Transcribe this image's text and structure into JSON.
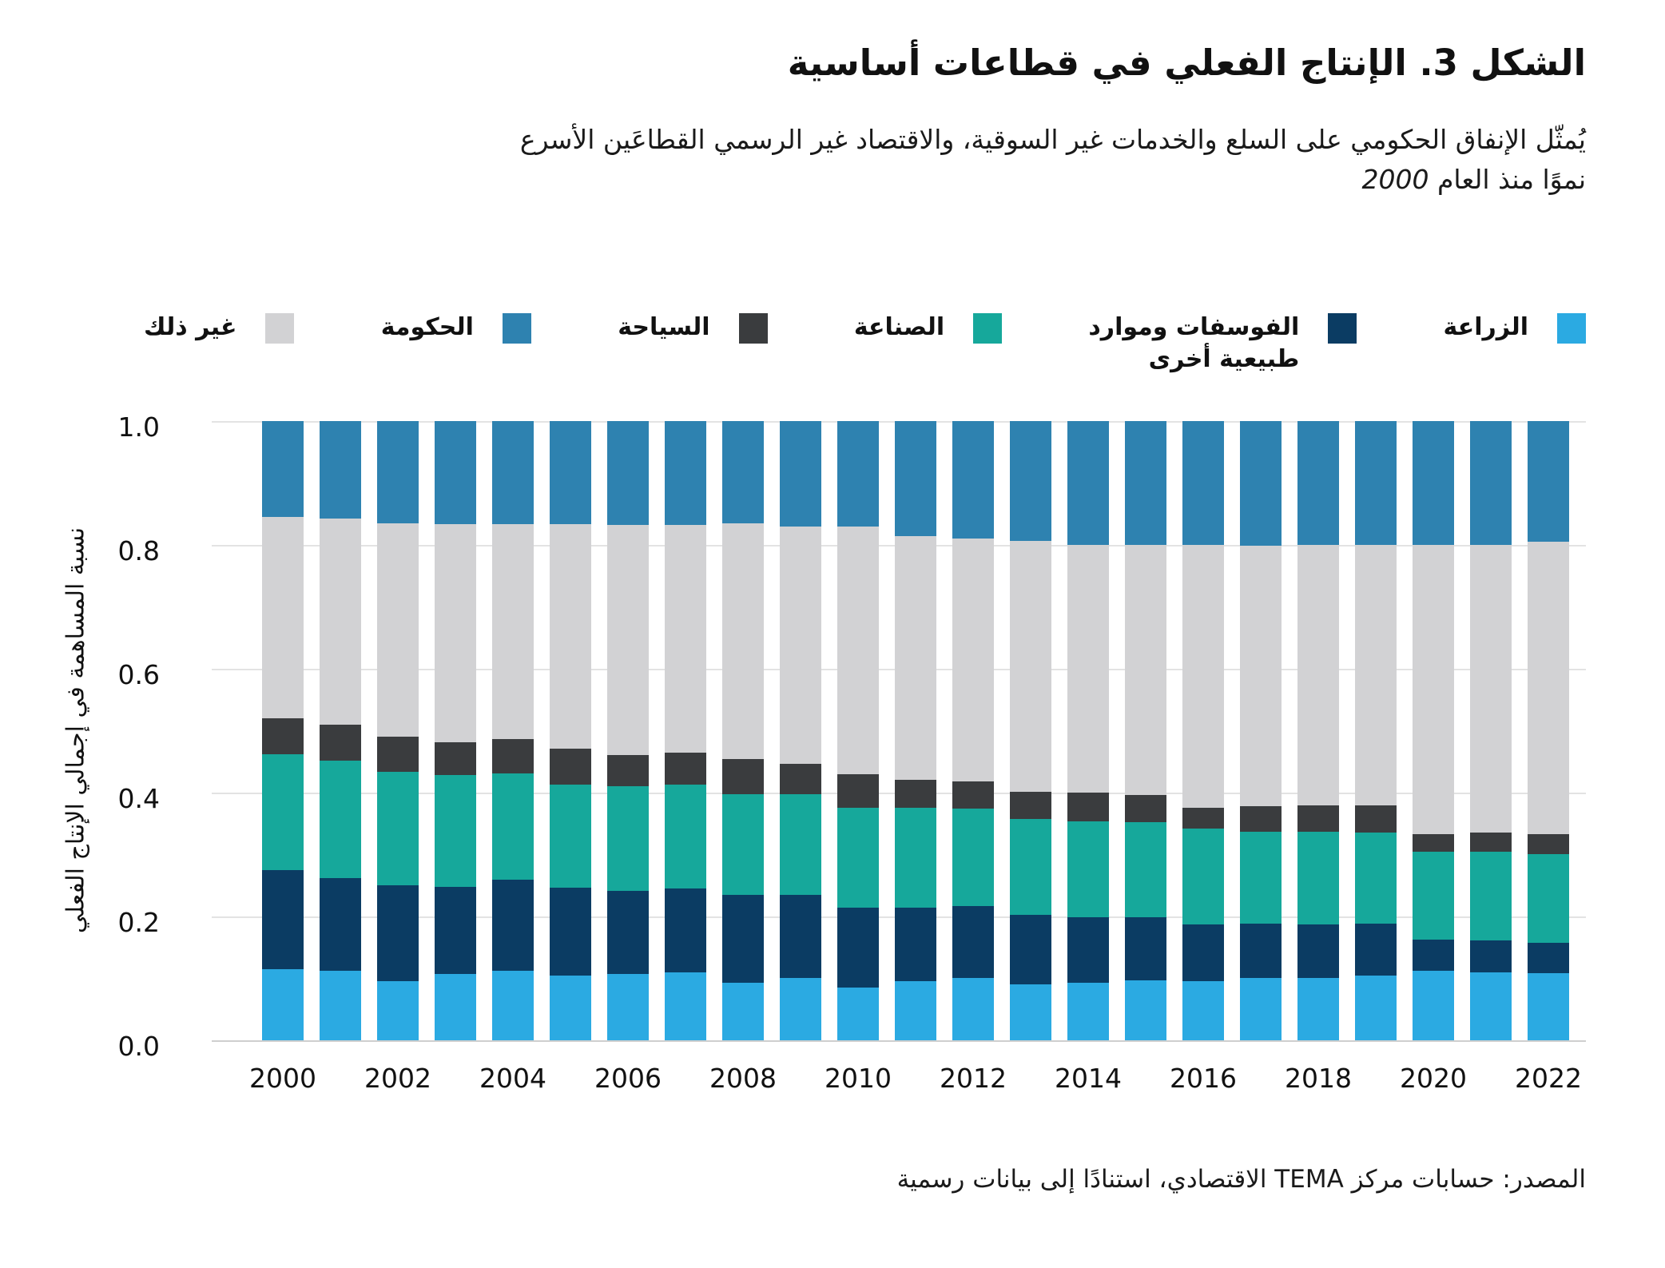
{
  "title": "الشكل 3. الإنتاج الفعلي في قطاعات أساسية",
  "subtitle": {
    "line1": "يُمثّل الإنفاق الحكومي على السلع والخدمات غير السوقية، والاقتصاد غير الرسمي القطاعَين الأسرع",
    "line2_text": "نموًا منذ العام",
    "line2_year": "2000"
  },
  "source": "المصدر: حسابات مركز TEMA الاقتصادي، استنادًا إلى بيانات رسمية",
  "colors": {
    "agriculture": "#2BAAE2",
    "phosphates": "#0B3C63",
    "industry": "#16A89B",
    "tourism": "#3A3C3E",
    "other": "#D2D2D4",
    "government": "#2E82B0",
    "gridline": "#E3E3E3",
    "text": "#111111"
  },
  "legend": [
    {
      "key": "agriculture",
      "lines": [
        "الزراعة"
      ]
    },
    {
      "key": "phosphates",
      "lines": [
        "الفوسفات وموارد",
        "طبيعية أخرى"
      ]
    },
    {
      "key": "industry",
      "lines": [
        "الصناعة"
      ]
    },
    {
      "key": "tourism",
      "lines": [
        "السياحة"
      ]
    },
    {
      "key": "government",
      "lines": [
        "الحكومة"
      ]
    },
    {
      "key": "other",
      "lines": [
        "غير ذلك"
      ]
    }
  ],
  "chart_data": {
    "type": "bar",
    "stacked": true,
    "title": "الشكل 3. الإنتاج الفعلي في قطاعات أساسية",
    "ylabel": "نسبة المساهمة في إجمالي الإنتاج الفعلي",
    "xlabel": "",
    "ylim": [
      0,
      1
    ],
    "grid": true,
    "legend_position": "top",
    "y_ticks": [
      "1.0",
      "0.8",
      "0.6",
      "0.4",
      "0.2",
      "0.0"
    ],
    "y_tick_values": [
      1.0,
      0.8,
      0.6,
      0.4,
      0.2,
      0.0
    ],
    "categories": [
      2000,
      2001,
      2002,
      2003,
      2004,
      2005,
      2006,
      2007,
      2008,
      2009,
      2010,
      2011,
      2012,
      2013,
      2014,
      2015,
      2016,
      2017,
      2018,
      2019,
      2020,
      2021,
      2022
    ],
    "x_tick_years": [
      2000,
      2002,
      2004,
      2006,
      2008,
      2010,
      2012,
      2014,
      2016,
      2018,
      2020,
      2022
    ],
    "series": [
      {
        "key": "agriculture",
        "name": "الزراعة",
        "values": [
          0.115,
          0.112,
          0.095,
          0.107,
          0.112,
          0.105,
          0.107,
          0.11,
          0.093,
          0.1,
          0.085,
          0.095,
          0.1,
          0.09,
          0.093,
          0.097,
          0.095,
          0.1,
          0.1,
          0.105,
          0.112,
          0.11,
          0.108
        ]
      },
      {
        "key": "phosphates",
        "name": "الفوسفات وموارد طبيعية أخرى",
        "values": [
          0.16,
          0.15,
          0.155,
          0.141,
          0.147,
          0.142,
          0.134,
          0.135,
          0.142,
          0.135,
          0.129,
          0.119,
          0.117,
          0.112,
          0.106,
          0.102,
          0.092,
          0.089,
          0.087,
          0.083,
          0.051,
          0.051,
          0.05
        ]
      },
      {
        "key": "industry",
        "name": "الصناعة",
        "values": [
          0.187,
          0.19,
          0.183,
          0.181,
          0.172,
          0.166,
          0.169,
          0.168,
          0.163,
          0.163,
          0.162,
          0.162,
          0.157,
          0.155,
          0.155,
          0.153,
          0.155,
          0.148,
          0.15,
          0.147,
          0.141,
          0.143,
          0.143
        ]
      },
      {
        "key": "tourism",
        "name": "السياحة",
        "values": [
          0.058,
          0.058,
          0.057,
          0.052,
          0.055,
          0.058,
          0.051,
          0.052,
          0.056,
          0.048,
          0.054,
          0.044,
          0.044,
          0.044,
          0.046,
          0.044,
          0.034,
          0.041,
          0.042,
          0.044,
          0.029,
          0.031,
          0.032
        ]
      },
      {
        "key": "other",
        "name": "غير ذلك",
        "values": [
          0.325,
          0.333,
          0.345,
          0.352,
          0.347,
          0.362,
          0.371,
          0.367,
          0.381,
          0.384,
          0.4,
          0.394,
          0.392,
          0.405,
          0.4,
          0.404,
          0.424,
          0.421,
          0.421,
          0.421,
          0.467,
          0.465,
          0.472
        ]
      },
      {
        "key": "government",
        "name": "الحكومة",
        "values": [
          0.155,
          0.157,
          0.165,
          0.167,
          0.167,
          0.167,
          0.168,
          0.168,
          0.165,
          0.17,
          0.17,
          0.186,
          0.19,
          0.194,
          0.2,
          0.2,
          0.2,
          0.201,
          0.2,
          0.2,
          0.2,
          0.2,
          0.195
        ]
      }
    ]
  }
}
